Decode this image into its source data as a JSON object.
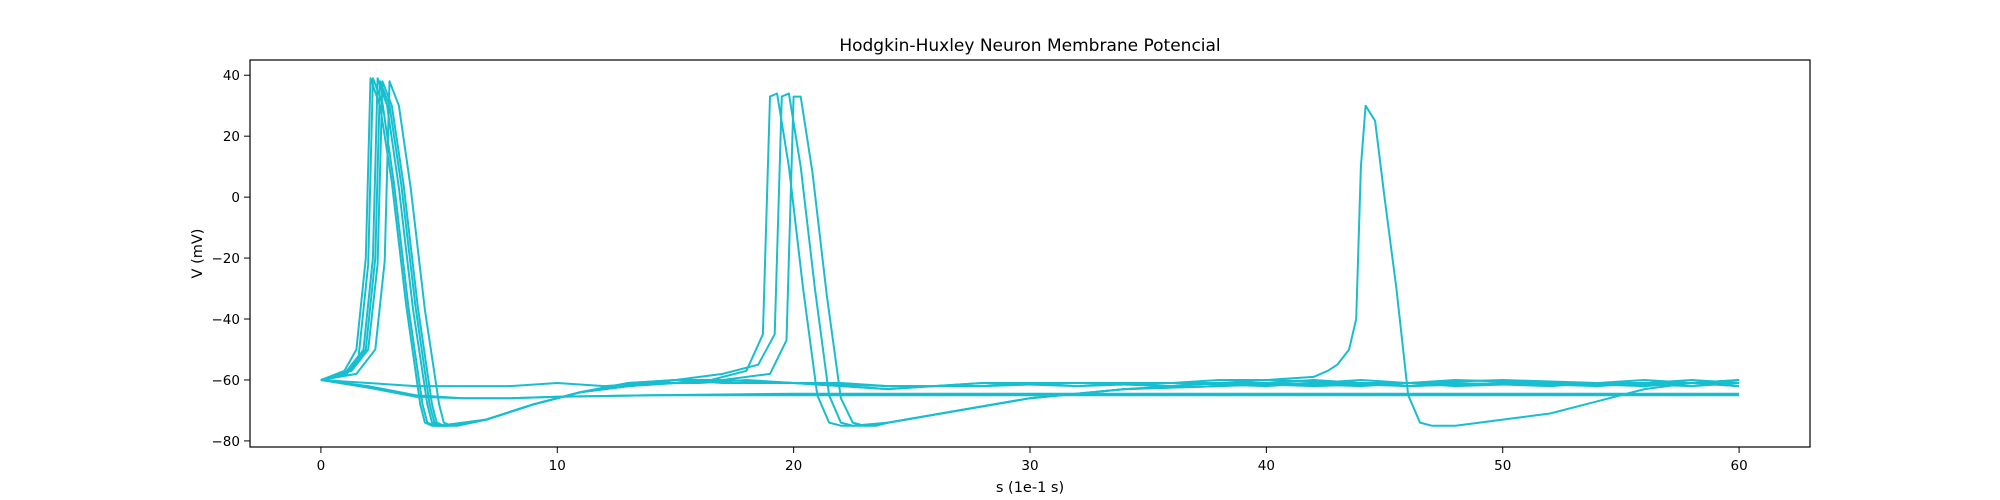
{
  "chart_data": {
    "type": "line",
    "title": "Hodgkin-Huxley Neuron Membrane Potencial",
    "xlabel": "s (1e-1 s)",
    "ylabel": "V (mV)",
    "xlim": [
      -3,
      63
    ],
    "ylim": [
      -82,
      45
    ],
    "xticks": [
      0,
      10,
      20,
      30,
      40,
      50,
      60
    ],
    "yticks": [
      -80,
      -60,
      -40,
      -20,
      0,
      20,
      40
    ],
    "xtick_labels": [
      "0",
      "10",
      "20",
      "30",
      "40",
      "50",
      "60"
    ],
    "ytick_labels": [
      "−80",
      "−60",
      "−40",
      "−20",
      "0",
      "20",
      "40"
    ],
    "grid": false,
    "legend": "none",
    "line_color": "#17becf",
    "series": [
      {
        "x": [
          0,
          1,
          1.5,
          1.9,
          2.1,
          2.5,
          3,
          3.6,
          4.2,
          4.4,
          4.7,
          5,
          7,
          9,
          11,
          13,
          15,
          17,
          20,
          24,
          28,
          32,
          36,
          40,
          44,
          48,
          52,
          56,
          60
        ],
        "y": [
          -60,
          -57,
          -50,
          -20,
          39,
          30,
          5,
          -35,
          -68,
          -74,
          -75,
          -75,
          -73,
          -68,
          -64,
          -62,
          -60,
          -60,
          -61,
          -63,
          -61,
          -62,
          -61,
          -61,
          -62,
          -60,
          -61,
          -62,
          -60
        ]
      },
      {
        "x": [
          0,
          1,
          1.6,
          2,
          2.2,
          2.6,
          3.1,
          3.7,
          4.3,
          4.5,
          4.8,
          5.1,
          7,
          9,
          11,
          13,
          15,
          17,
          20,
          24,
          28,
          32,
          36,
          40,
          44,
          48,
          52,
          56,
          60
        ],
        "y": [
          -60,
          -58,
          -52,
          -22,
          39,
          31,
          4,
          -36,
          -68,
          -74,
          -75,
          -75,
          -73,
          -68,
          -64,
          -61,
          -60,
          -60,
          -61,
          -62,
          -62,
          -61,
          -62,
          -60,
          -61,
          -61,
          -62,
          -60,
          -62
        ]
      },
      {
        "x": [
          0,
          1.1,
          1.8,
          2.2,
          2.4,
          2.8,
          3.3,
          3.9,
          4.5,
          4.7,
          5,
          5.3,
          7,
          9,
          11,
          13,
          15,
          17,
          20,
          24,
          28,
          32,
          36,
          40,
          44,
          48,
          52,
          56,
          60
        ],
        "y": [
          -60,
          -58,
          -50,
          -20,
          39,
          30,
          3,
          -37,
          -68,
          -74,
          -75,
          -75,
          -73,
          -68,
          -64,
          -62,
          -60,
          -61,
          -61,
          -63,
          -61,
          -61,
          -61,
          -62,
          -60,
          -62,
          -61,
          -61,
          -61
        ]
      },
      {
        "x": [
          0,
          1.3,
          2,
          2.4,
          2.6,
          3,
          3.5,
          4.1,
          4.7,
          4.9,
          5.2,
          5.5,
          7,
          9,
          11,
          13,
          15,
          16.5,
          18,
          18.7,
          19,
          19.3,
          19.8,
          20.4,
          21,
          21.5,
          22,
          22.5,
          24,
          27,
          30,
          34,
          38,
          42,
          46,
          50,
          54,
          58,
          60
        ],
        "y": [
          -60,
          -57,
          -50,
          -22,
          38,
          30,
          4,
          -36,
          -68,
          -74,
          -75,
          -75,
          -73,
          -68,
          -64,
          -62,
          -61,
          -60,
          -57,
          -45,
          33,
          34,
          10,
          -30,
          -65,
          -74,
          -75,
          -75,
          -74,
          -70,
          -66,
          -63,
          -62,
          -60,
          -62,
          -61,
          -62,
          -60,
          -61
        ]
      },
      {
        "x": [
          0,
          1.5,
          2.3,
          2.7,
          2.9,
          3.3,
          3.8,
          4.4,
          5,
          5.2,
          5.5,
          5.8,
          7,
          9,
          11,
          13,
          15,
          17,
          18.5,
          19.2,
          19.5,
          19.8,
          20.3,
          20.9,
          21.5,
          22,
          22.5,
          23,
          24,
          27,
          30,
          34,
          38,
          42,
          46,
          50,
          54,
          58,
          60
        ],
        "y": [
          -60,
          -58,
          -50,
          -21,
          38,
          30,
          3,
          -37,
          -68,
          -74,
          -75,
          -75,
          -73,
          -68,
          -64,
          -61,
          -60,
          -58,
          -55,
          -45,
          33,
          34,
          10,
          -30,
          -65,
          -74,
          -75,
          -75,
          -74,
          -70,
          -66,
          -63,
          -61,
          -62,
          -61,
          -60,
          -61,
          -61,
          -60
        ]
      },
      {
        "x": [
          0,
          1.2,
          1.9,
          2.3,
          2.5,
          2.9,
          3.4,
          4,
          4.6,
          4.8,
          5.1,
          5.4,
          7,
          9,
          11,
          13,
          15,
          17,
          19,
          19.7,
          20,
          20.3,
          20.8,
          21.4,
          22,
          22.5,
          23,
          23.5,
          24,
          27,
          30,
          34,
          38,
          42,
          46,
          50,
          54,
          58,
          60
        ],
        "y": [
          -60,
          -57,
          -50,
          -20,
          38,
          30,
          4,
          -36,
          -68,
          -74,
          -75,
          -75,
          -73,
          -68,
          -64,
          -62,
          -61,
          -60,
          -58,
          -47,
          33,
          33,
          8,
          -32,
          -66,
          -74,
          -75,
          -75,
          -74,
          -70,
          -66,
          -63,
          -62,
          -61,
          -62,
          -61,
          -61,
          -62,
          -61
        ]
      },
      {
        "x": [
          0,
          2,
          4,
          6,
          8,
          10,
          12,
          14,
          16,
          18,
          20,
          22,
          24,
          26,
          28,
          30,
          32,
          34,
          36,
          38,
          40,
          42,
          42.6,
          43,
          43.5,
          43.8,
          44,
          44.2,
          44.6,
          45,
          45.5,
          46,
          46.5,
          47,
          48,
          50,
          52,
          54,
          56,
          58,
          60
        ],
        "y": [
          -60,
          -61,
          -62,
          -62,
          -62,
          -61,
          -62,
          -61,
          -61,
          -60,
          -61,
          -61,
          -62,
          -62,
          -62,
          -61,
          -61,
          -61,
          -61,
          -60,
          -60,
          -59,
          -57,
          -55,
          -50,
          -40,
          10,
          30,
          25,
          0,
          -30,
          -65,
          -74,
          -75,
          -75,
          -73,
          -71,
          -67,
          -63,
          -61,
          -62
        ]
      },
      {
        "x": [
          0,
          2,
          4,
          6,
          8,
          10,
          14,
          20,
          30,
          40,
          50,
          60
        ],
        "y": [
          -60,
          -62,
          -65,
          -66,
          -66,
          -65.5,
          -65,
          -65,
          -65,
          -65,
          -65,
          -65
        ]
      },
      {
        "x": [
          0,
          2,
          4,
          6,
          8,
          10,
          14,
          20,
          30,
          40,
          50,
          60
        ],
        "y": [
          -60,
          -62.5,
          -65.5,
          -66,
          -66,
          -65.5,
          -65,
          -64.5,
          -64.5,
          -64.5,
          -64.5,
          -64.5
        ]
      }
    ]
  }
}
